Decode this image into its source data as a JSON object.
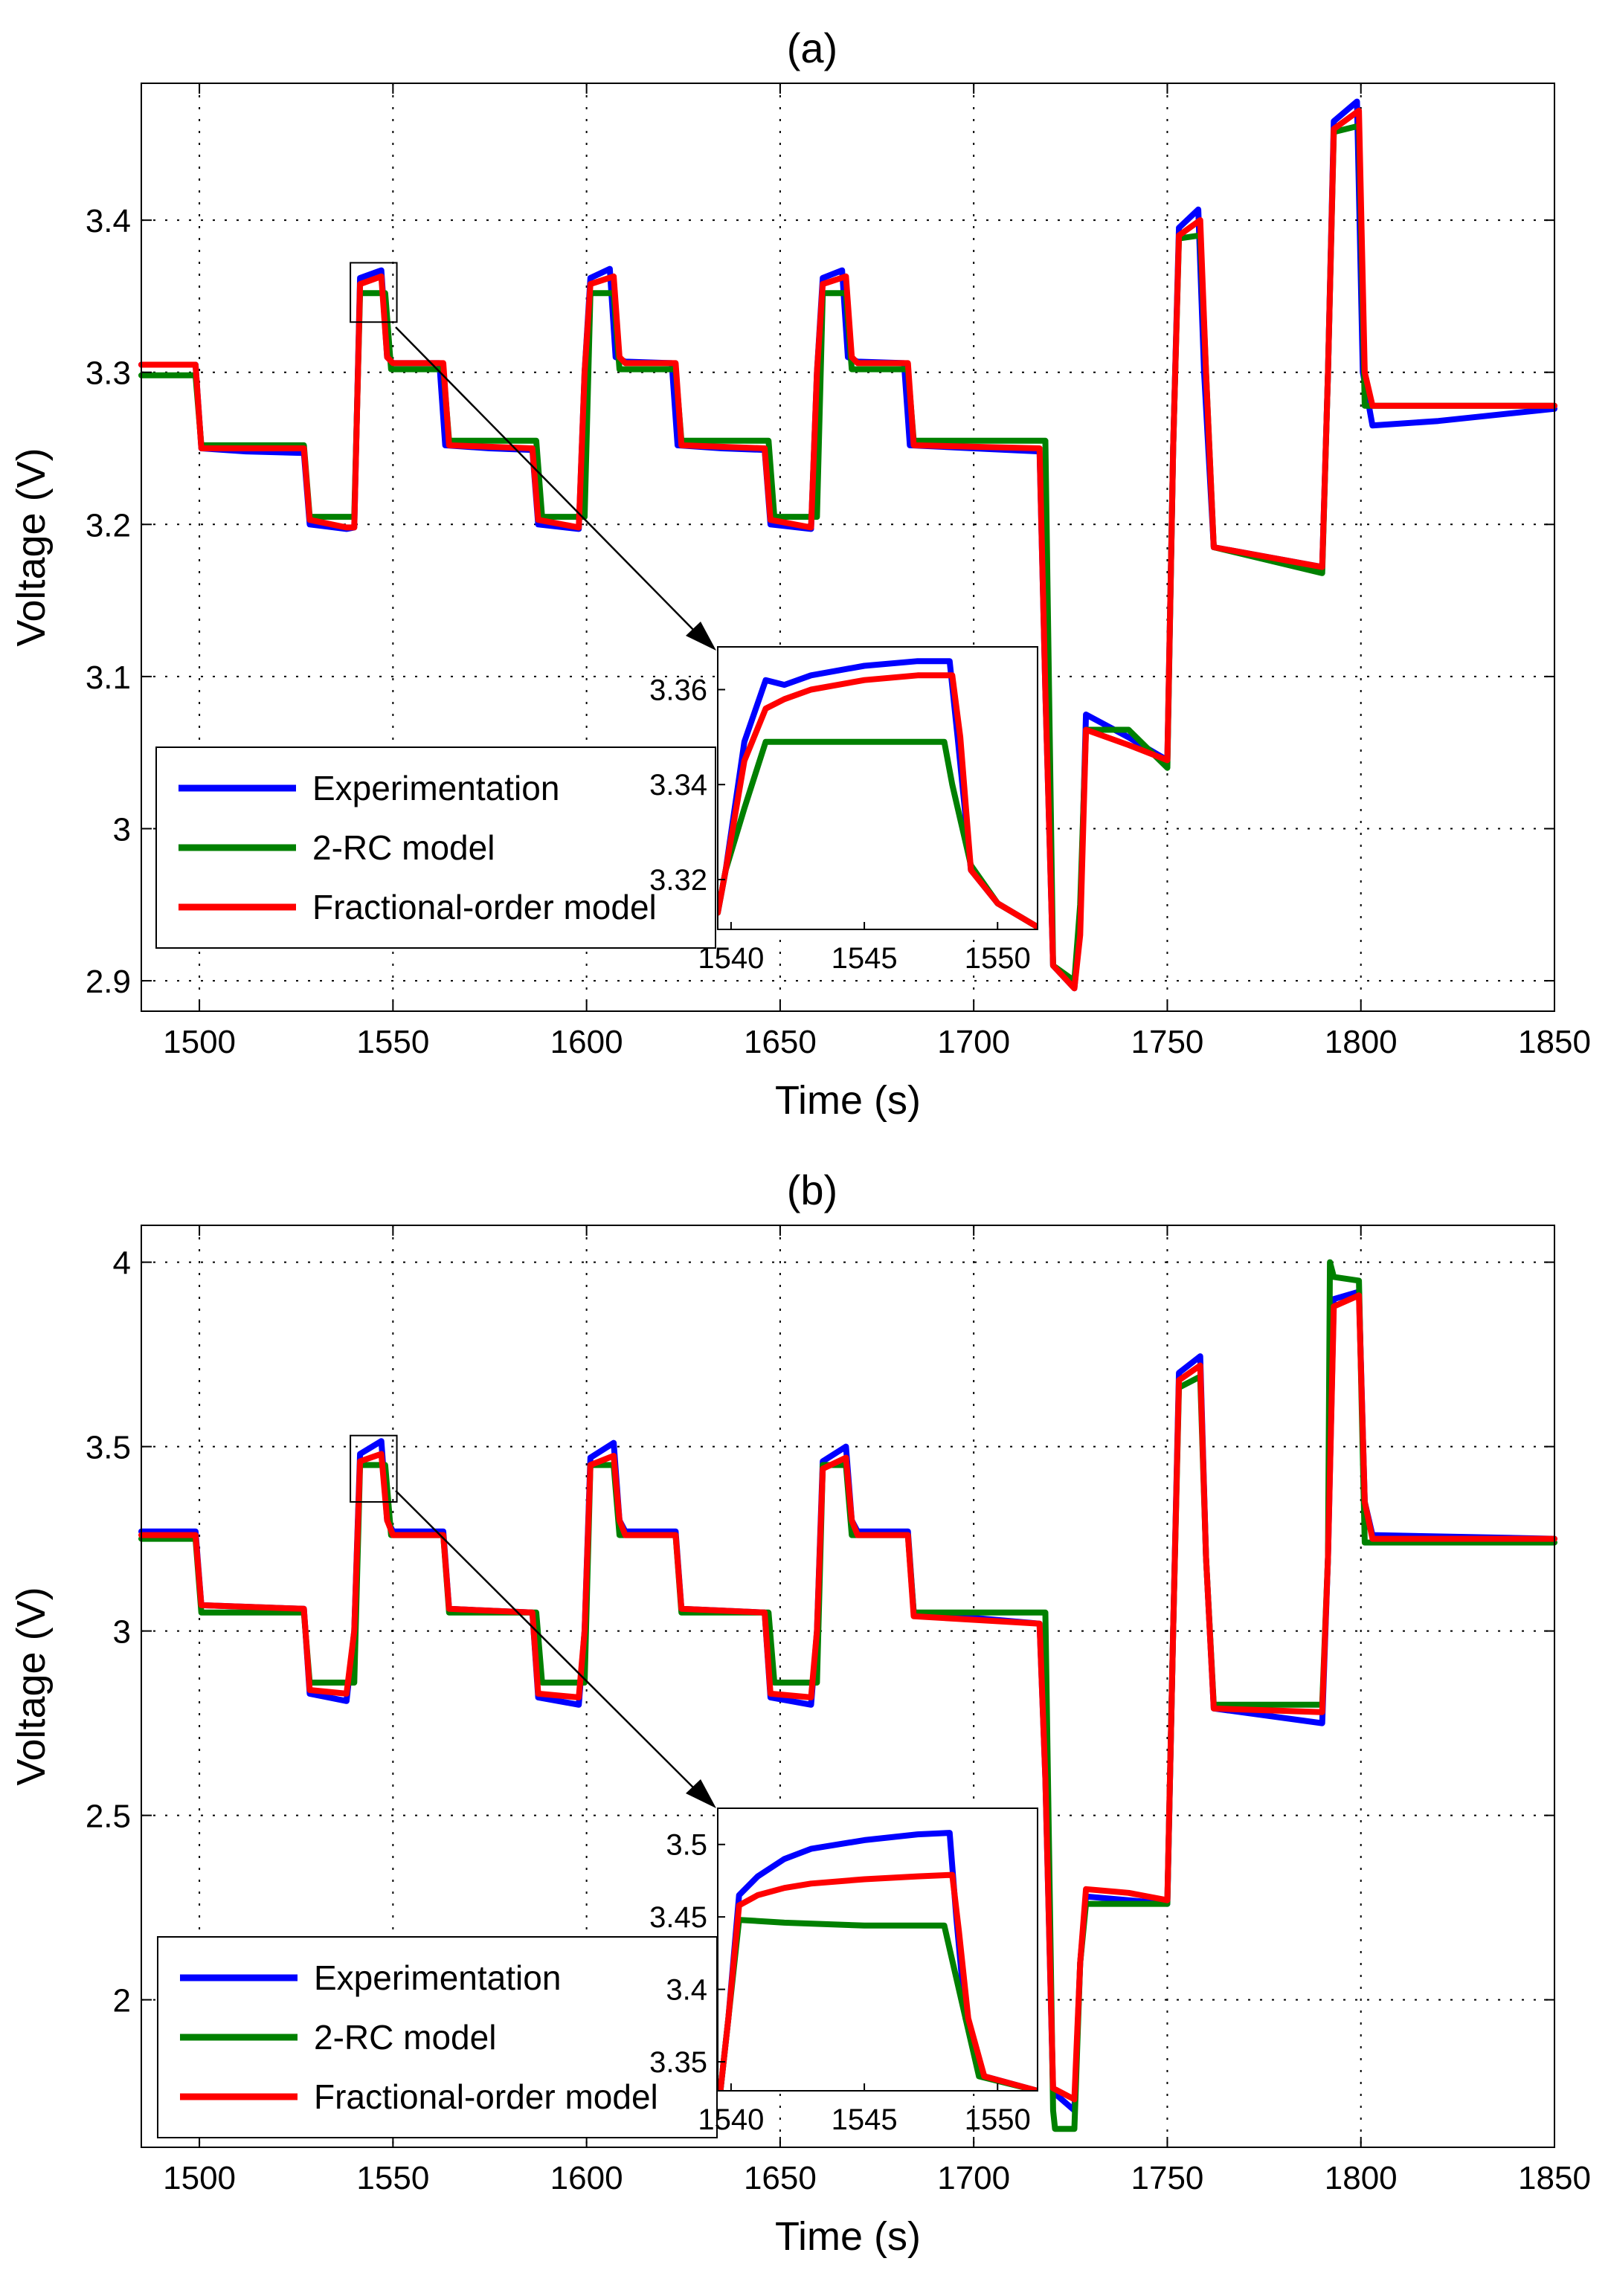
{
  "colors": {
    "experimentation": "#0000ff",
    "two_rc": "#008000",
    "fractional": "#ff0000"
  },
  "legend": [
    "Experimentation",
    "2-RC model",
    "Fractional-order model"
  ],
  "charts": [
    {
      "type": "line",
      "title": "(a)",
      "xlabel": "Time (s)",
      "ylabel": "Voltage (V)",
      "xlim": [
        1485,
        1850
      ],
      "ylim": [
        2.88,
        3.49
      ],
      "xticks": [
        1500,
        1550,
        1600,
        1650,
        1700,
        1750,
        1800,
        1850
      ],
      "xtick_labels": [
        "1500",
        "1550",
        "1600",
        "1650",
        "1700",
        "1750",
        "1800",
        "1850"
      ],
      "yticks": [
        2.9,
        3.0,
        3.1,
        3.2,
        3.3,
        3.4
      ],
      "ytick_labels": [
        "2.9",
        "3",
        "3.1",
        "3.2",
        "3.3",
        "3.4"
      ],
      "zoom_box": {
        "x": [
          1539,
          1551
        ],
        "y": [
          3.333,
          3.372
        ]
      },
      "series": [
        {
          "name": "Experimentation",
          "x": [
            1485,
            1499,
            1500.5,
            1512,
            1527,
            1528.5,
            1538,
            1540,
            1541.5,
            1547,
            1548.5,
            1550,
            1562,
            1563.5,
            1575,
            1586,
            1587.5,
            1598,
            1599.5,
            1601,
            1606,
            1607.5,
            1610,
            1622,
            1623.5,
            1635,
            1646,
            1647.5,
            1658,
            1659.5,
            1661,
            1666,
            1667.5,
            1670,
            1682,
            1683.5,
            1700,
            1717,
            1718.5,
            1720.5,
            1726,
            1727.5,
            1729,
            1740,
            1750,
            1751.5,
            1753,
            1758,
            1759.5,
            1762,
            1790,
            1791.5,
            1793,
            1799,
            1800.5,
            1803,
            1820,
            1850
          ],
          "y": [
            3.305,
            3.305,
            3.25,
            3.248,
            3.247,
            3.2,
            3.197,
            3.198,
            3.362,
            3.367,
            3.31,
            3.306,
            3.306,
            3.252,
            3.25,
            3.249,
            3.2,
            3.197,
            3.3,
            3.362,
            3.368,
            3.31,
            3.307,
            3.306,
            3.252,
            3.25,
            3.249,
            3.2,
            3.197,
            3.3,
            3.362,
            3.367,
            3.31,
            3.307,
            3.306,
            3.252,
            3.25,
            3.248,
            3.09,
            2.91,
            2.895,
            2.935,
            3.075,
            3.06,
            3.045,
            3.25,
            3.395,
            3.407,
            3.3,
            3.185,
            3.172,
            3.3,
            3.465,
            3.478,
            3.3,
            3.265,
            3.268,
            3.276
          ]
        },
        {
          "name": "2-RC model",
          "x": [
            1485,
            1499,
            1500.5,
            1527,
            1528.5,
            1540,
            1541.5,
            1548,
            1549.5,
            1563,
            1564.5,
            1587,
            1588.5,
            1599.5,
            1601,
            1607,
            1608.5,
            1623,
            1624.5,
            1647,
            1648.5,
            1659.5,
            1661,
            1667,
            1668.5,
            1683,
            1684.5,
            1718.5,
            1720.5,
            1726,
            1727.5,
            1729,
            1740,
            1750,
            1751.5,
            1753,
            1758.5,
            1760,
            1762,
            1790,
            1791.5,
            1793,
            1799.5,
            1801,
            1850
          ],
          "y": [
            3.298,
            3.298,
            3.252,
            3.252,
            3.205,
            3.205,
            3.352,
            3.352,
            3.302,
            3.302,
            3.255,
            3.255,
            3.205,
            3.205,
            3.352,
            3.352,
            3.302,
            3.302,
            3.255,
            3.255,
            3.205,
            3.205,
            3.352,
            3.352,
            3.302,
            3.302,
            3.255,
            3.255,
            2.91,
            2.9,
            2.95,
            3.065,
            3.065,
            3.04,
            3.25,
            3.388,
            3.39,
            3.3,
            3.185,
            3.168,
            3.3,
            3.458,
            3.462,
            3.278,
            3.278
          ]
        },
        {
          "name": "Fractional-order model",
          "x": [
            1485,
            1499,
            1500.5,
            1527,
            1528.5,
            1538,
            1540,
            1541.5,
            1547,
            1548.5,
            1550,
            1563,
            1564.5,
            1586,
            1587.5,
            1598,
            1599.5,
            1601,
            1607,
            1608.5,
            1610,
            1623,
            1624.5,
            1646,
            1647.5,
            1658,
            1659.5,
            1661,
            1667,
            1668.5,
            1670,
            1683,
            1684.5,
            1717,
            1718.5,
            1720.5,
            1726,
            1727.5,
            1729,
            1740,
            1750,
            1751.5,
            1753,
            1758.5,
            1760,
            1762,
            1790,
            1791.5,
            1793,
            1799.5,
            1801,
            1803,
            1850
          ],
          "y": [
            3.305,
            3.305,
            3.25,
            3.25,
            3.203,
            3.198,
            3.198,
            3.358,
            3.363,
            3.31,
            3.306,
            3.306,
            3.252,
            3.25,
            3.203,
            3.198,
            3.3,
            3.358,
            3.363,
            3.31,
            3.306,
            3.306,
            3.252,
            3.25,
            3.203,
            3.198,
            3.3,
            3.358,
            3.363,
            3.31,
            3.306,
            3.306,
            3.252,
            3.25,
            3.09,
            2.91,
            2.895,
            2.93,
            3.065,
            3.055,
            3.045,
            3.25,
            3.39,
            3.4,
            3.3,
            3.185,
            3.172,
            3.3,
            3.46,
            3.472,
            3.3,
            3.278,
            3.278
          ]
        }
      ],
      "inset": {
        "xlim": [
          1539.5,
          1551.5
        ],
        "ylim": [
          3.3095,
          3.369
        ],
        "xticks": [
          1540,
          1545,
          1550
        ],
        "xtick_labels": [
          "1540",
          "1545",
          "1550"
        ],
        "yticks": [
          3.32,
          3.34,
          3.36
        ],
        "ytick_labels": [
          "3.32",
          "3.34",
          "3.36"
        ],
        "series": [
          {
            "name": "Experimentation",
            "x": [
              1539.5,
              1539.8,
              1540.5,
              1541.3,
              1542,
              1543,
              1545,
              1547,
              1548.2,
              1548.5,
              1549,
              1550,
              1551.5
            ],
            "y": [
              3.313,
              3.322,
              3.349,
              3.362,
              3.361,
              3.363,
              3.365,
              3.366,
              3.366,
              3.35,
              3.322,
              3.315,
              3.31
            ]
          },
          {
            "name": "2-RC model",
            "x": [
              1539.5,
              1539.8,
              1540.5,
              1541.3,
              1544,
              1548,
              1548.3,
              1549,
              1550,
              1551.5
            ],
            "y": [
              3.313,
              3.322,
              3.335,
              3.349,
              3.349,
              3.349,
              3.34,
              3.323,
              3.315,
              3.31
            ]
          },
          {
            "name": "Fractional-order model",
            "x": [
              1539.5,
              1539.8,
              1540.5,
              1541.3,
              1542,
              1543,
              1545,
              1547,
              1548.3,
              1548.6,
              1549,
              1550,
              1551.5
            ],
            "y": [
              3.313,
              3.322,
              3.345,
              3.356,
              3.358,
              3.36,
              3.362,
              3.363,
              3.363,
              3.35,
              3.322,
              3.315,
              3.31
            ]
          }
        ]
      }
    },
    {
      "type": "line",
      "title": "(b)",
      "xlabel": "Time (s)",
      "ylabel": "Voltage (V)",
      "xlim": [
        1485,
        1850
      ],
      "ylim": [
        1.6,
        4.1
      ],
      "xticks": [
        1500,
        1550,
        1600,
        1650,
        1700,
        1750,
        1800,
        1850
      ],
      "xtick_labels": [
        "1500",
        "1550",
        "1600",
        "1650",
        "1700",
        "1750",
        "1800",
        "1850"
      ],
      "yticks": [
        2.0,
        2.5,
        3.0,
        3.5,
        4.0
      ],
      "ytick_labels": [
        "2",
        "2.5",
        "3",
        "3.5",
        "4"
      ],
      "zoom_box": {
        "x": [
          1539,
          1551
        ],
        "y": [
          3.35,
          3.53
        ]
      },
      "series": [
        {
          "name": "Experimentation",
          "x": [
            1485,
            1499,
            1500.5,
            1527,
            1528.5,
            1538,
            1540,
            1541.5,
            1547,
            1548.5,
            1550,
            1563,
            1564.5,
            1586,
            1587.5,
            1598,
            1599.5,
            1601,
            1607,
            1608.5,
            1610,
            1623,
            1624.5,
            1646,
            1647.5,
            1658,
            1659.5,
            1661,
            1667,
            1668.5,
            1670,
            1683,
            1684.5,
            1717,
            1718.5,
            1720.5,
            1726,
            1727.5,
            1729,
            1740,
            1750,
            1751.5,
            1753,
            1758.5,
            1760,
            1762,
            1790,
            1791.5,
            1793,
            1799.5,
            1801,
            1803,
            1850
          ],
          "y": [
            3.27,
            3.27,
            3.07,
            3.06,
            2.83,
            2.81,
            3.0,
            3.48,
            3.515,
            3.3,
            3.27,
            3.27,
            3.06,
            3.05,
            2.82,
            2.8,
            3.0,
            3.47,
            3.51,
            3.3,
            3.27,
            3.27,
            3.06,
            3.05,
            2.82,
            2.8,
            3.0,
            3.46,
            3.5,
            3.3,
            3.27,
            3.27,
            3.05,
            3.02,
            2.6,
            1.75,
            1.7,
            2.1,
            2.28,
            2.27,
            2.26,
            3.0,
            3.7,
            3.745,
            3.2,
            2.79,
            2.75,
            3.2,
            3.9,
            3.92,
            3.35,
            3.26,
            3.25
          ]
        },
        {
          "name": "2-RC model",
          "x": [
            1485,
            1499,
            1500.5,
            1527,
            1528.5,
            1540,
            1541.5,
            1548,
            1549.5,
            1563,
            1564.5,
            1587,
            1588.5,
            1599.5,
            1601,
            1607,
            1608.5,
            1623,
            1624.5,
            1647,
            1648.5,
            1659.5,
            1661,
            1667,
            1668.5,
            1683,
            1684.5,
            1718.5,
            1720.5,
            1721,
            1726,
            1727.5,
            1729,
            1740,
            1750,
            1751.5,
            1753,
            1758.5,
            1760,
            1762,
            1790,
            1791.5,
            1792,
            1793,
            1799.5,
            1801,
            1850
          ],
          "y": [
            3.25,
            3.25,
            3.05,
            3.05,
            2.86,
            2.86,
            3.45,
            3.45,
            3.26,
            3.26,
            3.05,
            3.05,
            2.86,
            2.86,
            3.45,
            3.45,
            3.26,
            3.26,
            3.05,
            3.05,
            2.86,
            2.86,
            3.45,
            3.45,
            3.26,
            3.26,
            3.05,
            3.05,
            1.7,
            1.65,
            1.65,
            2.1,
            2.26,
            2.26,
            2.26,
            3.0,
            3.66,
            3.69,
            3.2,
            2.8,
            2.8,
            3.2,
            4.0,
            3.96,
            3.95,
            3.24,
            3.24
          ]
        },
        {
          "name": "Fractional-order model",
          "x": [
            1485,
            1499,
            1500.5,
            1527,
            1528.5,
            1538,
            1540,
            1541.5,
            1547,
            1548.5,
            1550,
            1563,
            1564.5,
            1586,
            1587.5,
            1598,
            1599.5,
            1601,
            1607,
            1608.5,
            1610,
            1623,
            1624.5,
            1646,
            1647.5,
            1658,
            1659.5,
            1661,
            1667,
            1668.5,
            1670,
            1683,
            1684.5,
            1717,
            1718.5,
            1720.5,
            1726,
            1727.5,
            1729,
            1740,
            1750,
            1751.5,
            1753,
            1758.5,
            1760,
            1762,
            1790,
            1791.5,
            1793,
            1799.5,
            1801,
            1803,
            1850
          ],
          "y": [
            3.26,
            3.26,
            3.07,
            3.06,
            2.84,
            2.83,
            3.0,
            3.46,
            3.48,
            3.3,
            3.26,
            3.26,
            3.06,
            3.05,
            2.83,
            2.82,
            3.0,
            3.45,
            3.475,
            3.3,
            3.26,
            3.26,
            3.06,
            3.05,
            2.83,
            2.82,
            3.0,
            3.44,
            3.47,
            3.3,
            3.26,
            3.26,
            3.04,
            3.02,
            2.6,
            1.76,
            1.73,
            2.1,
            2.3,
            2.29,
            2.27,
            3.0,
            3.68,
            3.72,
            3.2,
            2.79,
            2.78,
            3.2,
            3.88,
            3.91,
            3.35,
            3.25,
            3.25
          ]
        }
      ],
      "inset": {
        "xlim": [
          1539.5,
          1551.5
        ],
        "ylim": [
          3.33,
          3.525
        ],
        "xticks": [
          1540,
          1545,
          1550
        ],
        "xtick_labels": [
          "1540",
          "1545",
          "1550"
        ],
        "yticks": [
          3.35,
          3.4,
          3.45,
          3.5
        ],
        "ytick_labels": [
          "3.35",
          "3.4",
          "3.45",
          "3.5"
        ],
        "series": [
          {
            "name": "Experimentation",
            "x": [
              1539.6,
              1539.9,
              1540.3,
              1541,
              1542,
              1543,
              1545,
              1547,
              1548.2,
              1548.45,
              1548.8,
              1549.5,
              1551.5
            ],
            "y": [
              3.33,
              3.38,
              3.465,
              3.478,
              3.49,
              3.497,
              3.503,
              3.507,
              3.508,
              3.45,
              3.38,
              3.34,
              3.33
            ]
          },
          {
            "name": "2-RC model",
            "x": [
              1539.6,
              1539.9,
              1540.3,
              1542,
              1545,
              1548,
              1548.3,
              1548.8,
              1549.3,
              1551.5
            ],
            "y": [
              3.33,
              3.38,
              3.448,
              3.446,
              3.444,
              3.444,
              3.42,
              3.38,
              3.34,
              3.33
            ]
          },
          {
            "name": "Fractional-order model",
            "x": [
              1539.6,
              1539.9,
              1540.3,
              1541,
              1542,
              1543,
              1545,
              1547,
              1548.3,
              1548.55,
              1548.9,
              1549.5,
              1551.5
            ],
            "y": [
              3.33,
              3.38,
              3.458,
              3.465,
              3.47,
              3.473,
              3.476,
              3.478,
              3.479,
              3.44,
              3.38,
              3.34,
              3.33
            ]
          }
        ]
      }
    }
  ]
}
